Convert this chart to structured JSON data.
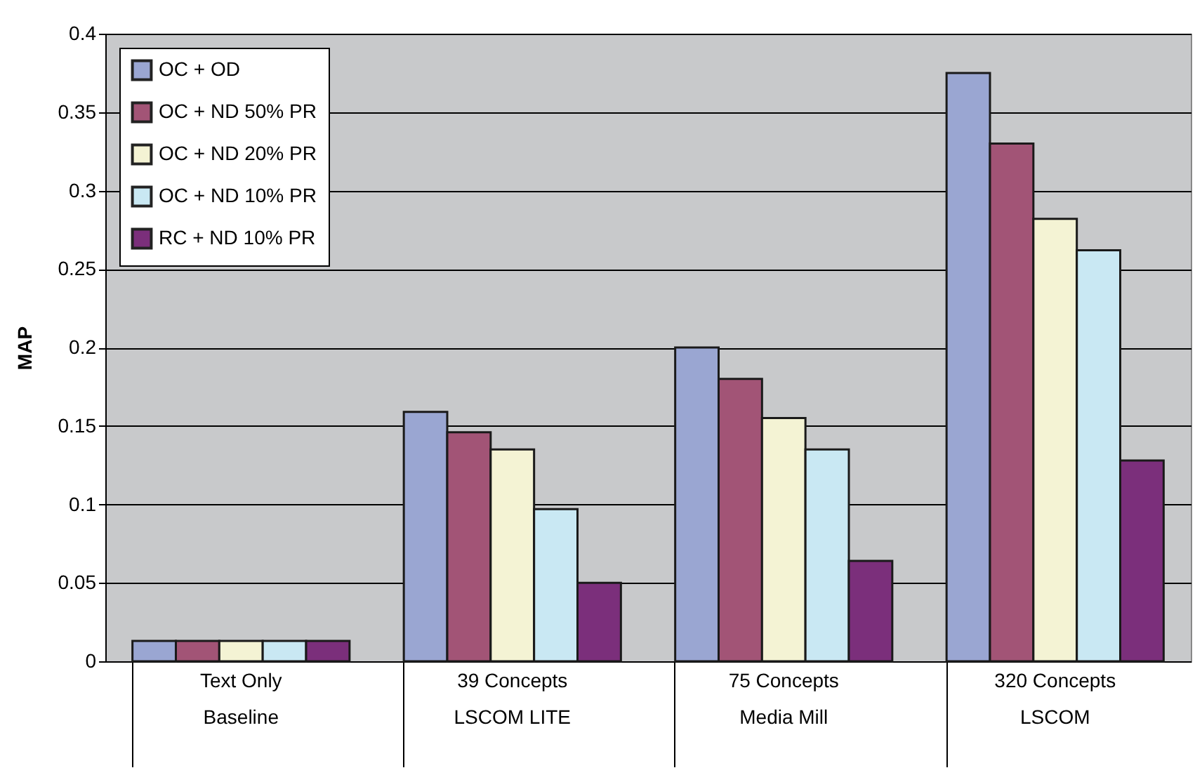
{
  "chart_data": {
    "type": "bar",
    "ylabel": "MAP",
    "categories": [
      "Text Only\nBaseline",
      "39 Concepts\nLSCOM LITE",
      "75 Concepts\nMedia Mill",
      "320 Concepts\nLSCOM"
    ],
    "series": [
      {
        "name": "OC + OD",
        "color": "#9aa6d2",
        "values": [
          0.013,
          0.159,
          0.2,
          0.375
        ]
      },
      {
        "name": "OC + ND 50% PR",
        "color": "#a25476",
        "values": [
          0.013,
          0.146,
          0.18,
          0.33
        ]
      },
      {
        "name": "OC + ND 20% PR",
        "color": "#f4f3d4",
        "values": [
          0.013,
          0.135,
          0.155,
          0.282
        ]
      },
      {
        "name": "OC + ND 10% PR",
        "color": "#c9e8f3",
        "values": [
          0.013,
          0.097,
          0.135,
          0.262
        ]
      },
      {
        "name": "RC + ND 10% PR",
        "color": "#7b2f7b",
        "values": [
          0.013,
          0.05,
          0.064,
          0.128
        ]
      }
    ],
    "ylim": [
      0,
      0.4
    ],
    "yticks": [
      0,
      0.05,
      0.1,
      0.15,
      0.2,
      0.25,
      0.3,
      0.35,
      0.4
    ],
    "grid": true,
    "legend": "top left"
  }
}
